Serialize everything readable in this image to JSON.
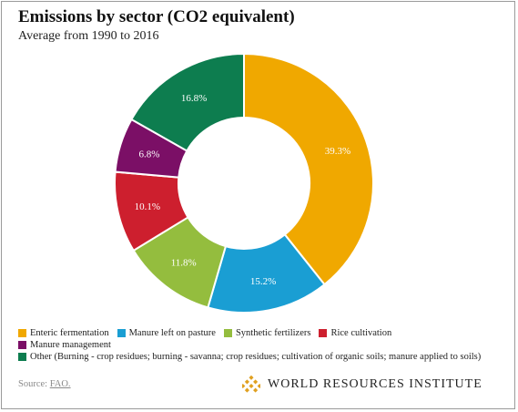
{
  "chart_data": {
    "type": "pie",
    "title": "Emissions by sector (CO2 equivalent)",
    "subtitle": "Average from 1990 to 2016",
    "donut": true,
    "slices": [
      {
        "label": "Enteric fermentation",
        "value": 39.3,
        "display": "39.3%",
        "color": "#f0a800"
      },
      {
        "label": "Manure left on pasture",
        "value": 15.2,
        "display": "15.2%",
        "color": "#1a9ed3"
      },
      {
        "label": "Synthetic fertilizers",
        "value": 11.8,
        "display": "11.8%",
        "color": "#94bd3e"
      },
      {
        "label": "Rice cultivation",
        "value": 10.1,
        "display": "10.1%",
        "color": "#cd1f2e"
      },
      {
        "label": "Manure management",
        "value": 6.8,
        "display": "6.8%",
        "color": "#7b0f66"
      },
      {
        "label": "Other (Burning - crop residues; burning - savanna; crop residues; cultivation of organic soils; manure applied to soils)",
        "value": 16.8,
        "display": "16.8%",
        "color": "#0d7d4f"
      }
    ],
    "legend_position": "bottom"
  },
  "source": {
    "prefix": "Source: ",
    "link": "FAO."
  },
  "brand": {
    "name": "WORLD RESOURCES INSTITUTE",
    "logo_icon": "wri-diamond-logo-icon",
    "color": "#e0a020"
  }
}
